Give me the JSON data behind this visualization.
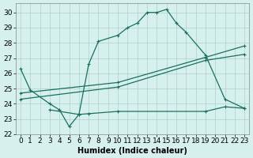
{
  "xlabel": "Humidex (Indice chaleur)",
  "bg_color": "#d6f0ee",
  "grid_color": "#b0cece",
  "line_color": "#1a7060",
  "xlim": [
    -0.5,
    23.5
  ],
  "ylim": [
    22.0,
    30.6
  ],
  "xticks": [
    0,
    1,
    2,
    3,
    4,
    5,
    6,
    7,
    8,
    9,
    10,
    11,
    12,
    13,
    14,
    15,
    16,
    17,
    18,
    19,
    20,
    21,
    22,
    23
  ],
  "yticks": [
    22,
    23,
    24,
    25,
    26,
    27,
    28,
    29,
    30
  ],
  "series1_x": [
    0,
    1,
    3,
    4,
    5,
    6,
    7,
    8,
    10,
    11,
    12,
    13,
    14,
    15,
    16,
    17,
    19,
    21,
    23
  ],
  "series1_y": [
    26.3,
    24.9,
    24.0,
    23.6,
    22.5,
    23.3,
    26.6,
    28.1,
    28.5,
    29.0,
    29.3,
    30.0,
    30.0,
    30.2,
    29.3,
    28.7,
    27.2,
    24.3,
    23.7
  ],
  "series2_x": [
    3,
    6,
    7,
    10,
    19,
    21,
    23
  ],
  "series2_y": [
    23.6,
    23.3,
    23.35,
    23.5,
    23.5,
    23.8,
    23.7
  ],
  "series3_x": [
    0,
    10,
    19,
    23
  ],
  "series3_y": [
    24.3,
    25.1,
    26.85,
    27.25
  ],
  "series4_x": [
    0,
    10,
    19,
    23
  ],
  "series4_y": [
    24.7,
    25.4,
    27.05,
    27.8
  ],
  "font_size": 6.5
}
